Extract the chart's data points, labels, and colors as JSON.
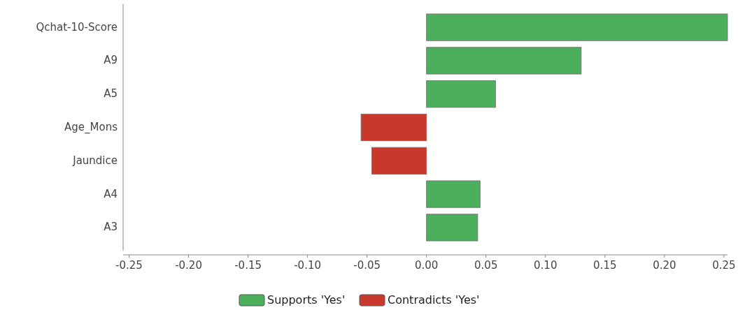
{
  "chart_data": {
    "type": "bar",
    "orientation": "horizontal",
    "categories": [
      "Qchat-10-Score",
      "A9",
      "A5",
      "Age_Mons",
      "Jaundice",
      "A4",
      "A3"
    ],
    "series": [
      {
        "name": "Supports 'Yes'",
        "color": "#4caf5c",
        "values": [
          0.253,
          0.13,
          0.058,
          null,
          null,
          0.045,
          0.043
        ]
      },
      {
        "name": "Contradicts 'Yes'",
        "color": "#c8392b",
        "values": [
          null,
          null,
          null,
          -0.055,
          -0.046,
          null,
          null
        ]
      }
    ],
    "xlim": [
      -0.255,
      0.253
    ],
    "xticks": [
      {
        "value": -0.25,
        "label": "-0.25"
      },
      {
        "value": -0.2,
        "label": "-0.20"
      },
      {
        "value": -0.15,
        "label": "-0.15"
      },
      {
        "value": -0.1,
        "label": "-0.10"
      },
      {
        "value": -0.05,
        "label": "-0.05"
      },
      {
        "value": 0,
        "label": "0.00"
      },
      {
        "value": 0.05,
        "label": "0.05"
      },
      {
        "value": 0.1,
        "label": "0.10"
      },
      {
        "value": 0.15,
        "label": "0.15"
      },
      {
        "value": 0.2,
        "label": "0.20"
      },
      {
        "value": 0.25,
        "label": "0.25"
      }
    ],
    "legend": "bottom",
    "grid": false
  }
}
